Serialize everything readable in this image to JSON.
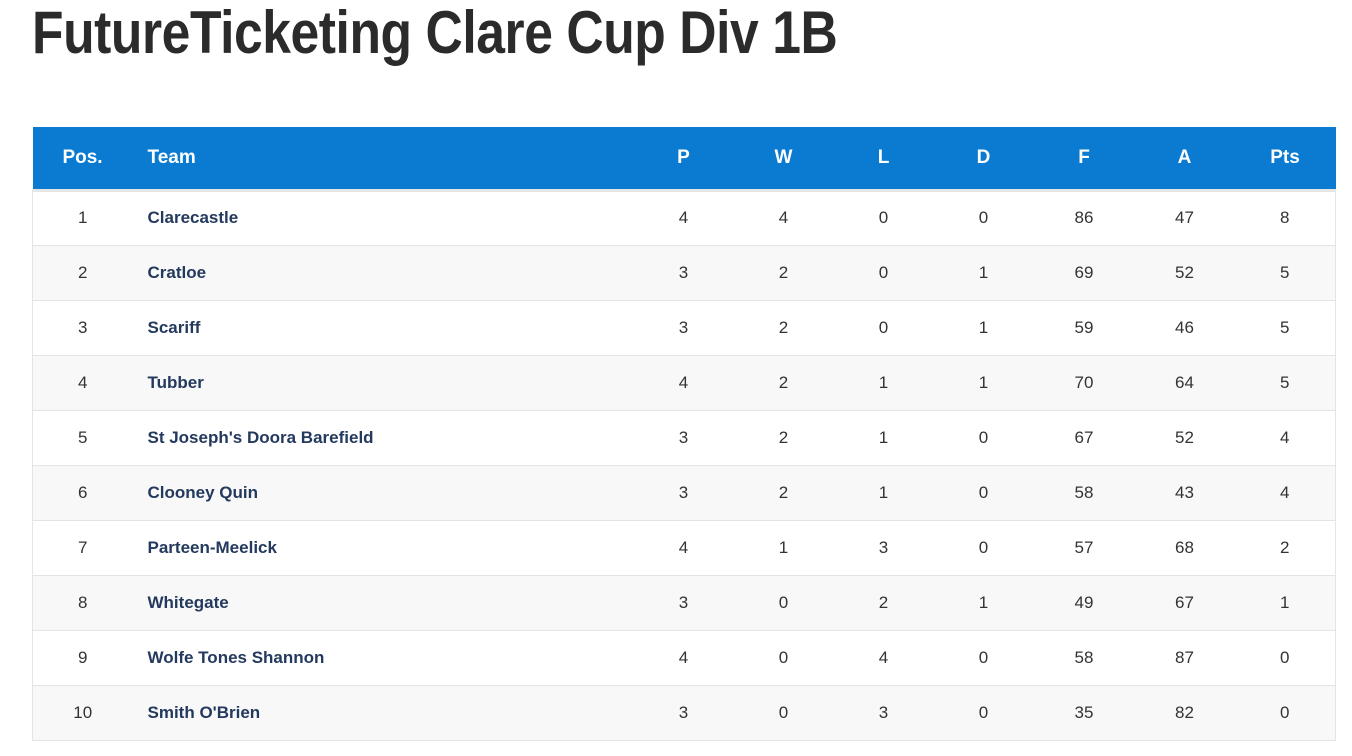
{
  "page": {
    "title": "FutureTicketing Clare Cup Div 1B"
  },
  "table": {
    "headers": {
      "pos": "Pos.",
      "team": "Team",
      "p": "P",
      "w": "W",
      "l": "L",
      "d": "D",
      "f": "F",
      "a": "A",
      "pts": "Pts"
    },
    "rows": [
      {
        "pos": "1",
        "team": "Clarecastle",
        "p": "4",
        "w": "4",
        "l": "0",
        "d": "0",
        "f": "86",
        "a": "47",
        "pts": "8"
      },
      {
        "pos": "2",
        "team": "Cratloe",
        "p": "3",
        "w": "2",
        "l": "0",
        "d": "1",
        "f": "69",
        "a": "52",
        "pts": "5"
      },
      {
        "pos": "3",
        "team": "Scariff",
        "p": "3",
        "w": "2",
        "l": "0",
        "d": "1",
        "f": "59",
        "a": "46",
        "pts": "5"
      },
      {
        "pos": "4",
        "team": "Tubber",
        "p": "4",
        "w": "2",
        "l": "1",
        "d": "1",
        "f": "70",
        "a": "64",
        "pts": "5"
      },
      {
        "pos": "5",
        "team": "St Joseph's Doora Barefield",
        "p": "3",
        "w": "2",
        "l": "1",
        "d": "0",
        "f": "67",
        "a": "52",
        "pts": "4"
      },
      {
        "pos": "6",
        "team": "Clooney Quin",
        "p": "3",
        "w": "2",
        "l": "1",
        "d": "0",
        "f": "58",
        "a": "43",
        "pts": "4"
      },
      {
        "pos": "7",
        "team": "Parteen-Meelick",
        "p": "4",
        "w": "1",
        "l": "3",
        "d": "0",
        "f": "57",
        "a": "68",
        "pts": "2"
      },
      {
        "pos": "8",
        "team": "Whitegate",
        "p": "3",
        "w": "0",
        "l": "2",
        "d": "1",
        "f": "49",
        "a": "67",
        "pts": "1"
      },
      {
        "pos": "9",
        "team": "Wolfe Tones Shannon",
        "p": "4",
        "w": "0",
        "l": "4",
        "d": "0",
        "f": "58",
        "a": "87",
        "pts": "0"
      },
      {
        "pos": "10",
        "team": "Smith O'Brien",
        "p": "3",
        "w": "0",
        "l": "3",
        "d": "0",
        "f": "35",
        "a": "82",
        "pts": "0"
      }
    ]
  },
  "colors": {
    "header_background": "#0a7bd1",
    "header_text": "#ffffff",
    "team_text": "#23395d",
    "title_text": "#2b2b2b"
  }
}
